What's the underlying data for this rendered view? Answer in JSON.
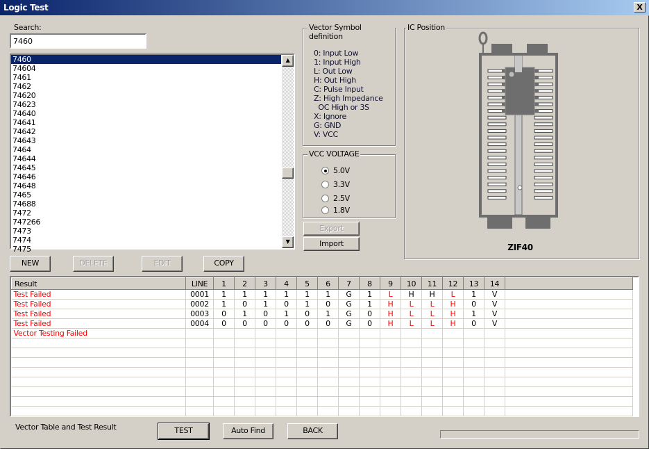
{
  "window": {
    "title": "Logic Test",
    "close_label": "X"
  },
  "search": {
    "label": "Search:",
    "value": "7460"
  },
  "chip_list": {
    "selected": "7460",
    "items": [
      "7460",
      "74604",
      "7461",
      "7462",
      "74620",
      "74623",
      "74640",
      "74641",
      "74642",
      "74643",
      "7464",
      "74644",
      "74645",
      "74646",
      "74648",
      "7465",
      "74688",
      "7472",
      "747266",
      "7473",
      "7474",
      "7475"
    ]
  },
  "list_buttons": {
    "new": "NEW",
    "delete": "DELETE",
    "edit": "EDIT",
    "copy": "COPY"
  },
  "vector_symbols": {
    "title": "Vector Symbol definition",
    "lines": [
      "0: Input Low",
      "1: Input High",
      "L: Out Low",
      "H: Out High",
      "C: Pulse Input",
      "Z: High Impedance",
      "  OC High or 3S",
      "X: Ignore",
      "G: GND",
      "V: VCC"
    ]
  },
  "vcc": {
    "title": "VCC VOLTAGE",
    "options": [
      "5.0V",
      "3.3V",
      "2.5V",
      "1.8V"
    ],
    "selected": "5.0V"
  },
  "io_buttons": {
    "export": "Export",
    "import": "Import"
  },
  "ic_position": {
    "title": "IC Position",
    "socket_label": "ZIF40",
    "chip_pins": 14,
    "socket_pins": 40
  },
  "vector_table": {
    "headers": [
      "Result",
      "LINE",
      "1",
      "2",
      "3",
      "4",
      "5",
      "6",
      "7",
      "8",
      "9",
      "10",
      "11",
      "12",
      "13",
      "14"
    ],
    "rows": [
      {
        "result": "Test Failed",
        "line": "0001",
        "pins": [
          "1",
          "1",
          "1",
          "1",
          "1",
          "1",
          "G",
          "1",
          "L",
          "H",
          "H",
          "L",
          "1",
          "V"
        ],
        "failed_pins": [
          9,
          12
        ]
      },
      {
        "result": "Test Failed",
        "line": "0002",
        "pins": [
          "1",
          "0",
          "1",
          "0",
          "1",
          "0",
          "G",
          "1",
          "H",
          "L",
          "L",
          "H",
          "0",
          "V"
        ],
        "failed_pins": [
          9,
          10,
          11,
          12
        ]
      },
      {
        "result": "Test Failed",
        "line": "0003",
        "pins": [
          "0",
          "1",
          "0",
          "1",
          "0",
          "1",
          "G",
          "0",
          "H",
          "L",
          "L",
          "H",
          "1",
          "V"
        ],
        "failed_pins": [
          9,
          10,
          11,
          12
        ]
      },
      {
        "result": "Test Failed",
        "line": "0004",
        "pins": [
          "0",
          "0",
          "0",
          "0",
          "0",
          "0",
          "G",
          "0",
          "H",
          "L",
          "L",
          "H",
          "0",
          "V"
        ],
        "failed_pins": [
          9,
          10,
          11,
          12
        ]
      }
    ],
    "summary": "Vector Testing Failed"
  },
  "colors": {
    "fail": "#ff0000",
    "selection": "#0a246a"
  },
  "footer": {
    "caption": "Vector Table and Test Result",
    "test": "TEST",
    "auto_find": "Auto Find",
    "back": "BACK",
    "progress": 0
  }
}
